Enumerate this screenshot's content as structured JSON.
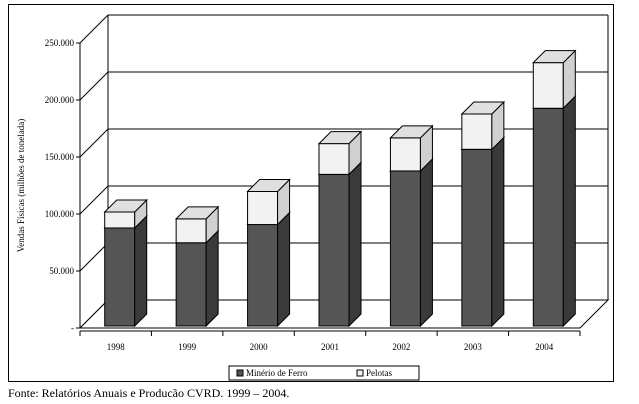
{
  "chart_data": {
    "type": "bar",
    "stacked": true,
    "three_d": true,
    "categories": [
      "1998",
      "1999",
      "2000",
      "2001",
      "2002",
      "2003",
      "2004"
    ],
    "series": [
      {
        "name": "Minério de Ferro",
        "color": "#555555",
        "values": [
          86000,
          73000,
          89000,
          133000,
          136000,
          155000,
          191000
        ]
      },
      {
        "name": "Pelotas",
        "color": "#f2f2f2",
        "values": [
          14000,
          21000,
          29000,
          27000,
          29000,
          31000,
          40000
        ]
      }
    ],
    "ylabel": "Vendas Físicas (milhões de tonelada)",
    "xlabel": "",
    "title": "",
    "ylim": [
      0,
      250000
    ],
    "y_ticks": [
      "-",
      "50.000",
      "100.000",
      "150.000",
      "200.000",
      "250.000"
    ],
    "grid": true,
    "legend_position": "bottom"
  },
  "source_note": "Fonte: Relatórios Anuais e Producão CVRD. 1999 – 2004."
}
